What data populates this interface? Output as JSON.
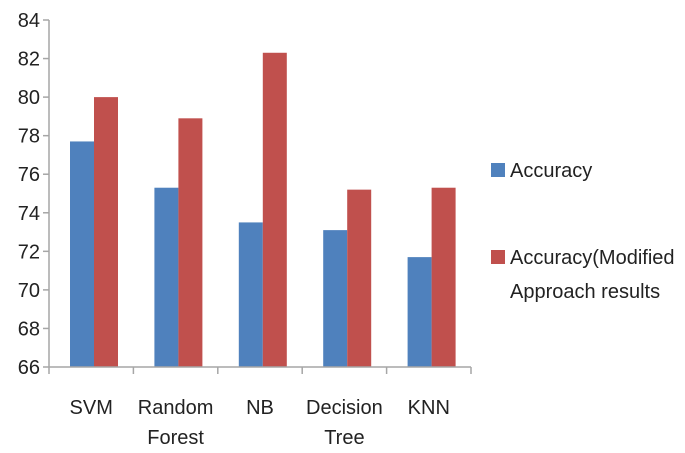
{
  "chart_data": {
    "type": "bar",
    "categories": [
      [
        "SVM"
      ],
      [
        "Random",
        "Forest"
      ],
      [
        "NB"
      ],
      [
        "Decision",
        "Tree"
      ],
      [
        "KNN"
      ]
    ],
    "series": [
      {
        "name": "Accuracy",
        "color": "#4f81bd",
        "values": [
          77.7,
          75.3,
          73.5,
          73.1,
          71.7
        ]
      },
      {
        "name": "Accuracy(Modified Approach results",
        "legend_lines": [
          "Accuracy(Modified",
          "Approach results"
        ],
        "color": "#c0504d",
        "values": [
          80.0,
          78.9,
          82.3,
          75.2,
          75.3
        ]
      }
    ],
    "ylim": [
      66,
      84
    ],
    "yticks": [
      66,
      68,
      70,
      72,
      74,
      76,
      78,
      80,
      82,
      84
    ],
    "grid": false,
    "legend_position": "right",
    "axis_color": "#a6a6a6"
  }
}
